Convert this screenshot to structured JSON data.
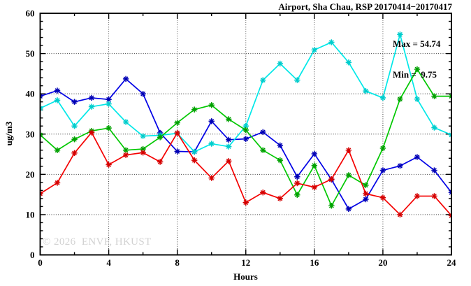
{
  "title": "Airport, Sha Chau, RSP 20170414−20170417",
  "annotation": {
    "max_line": "Max = 54.74",
    "min_line": "Min =  9.75"
  },
  "watermark": "© 2026  ENVF, HKUST",
  "axis": {
    "x_label": "Hours",
    "y_label": "ug/m3"
  },
  "chart_data": {
    "type": "line",
    "title": "Airport, Sha Chau, RSP 20170414−20170417",
    "xlabel": "Hours",
    "ylabel": "ug/m3",
    "xlim": [
      0,
      24
    ],
    "ylim": [
      0,
      60
    ],
    "xticks": [
      0,
      4,
      8,
      12,
      16,
      20,
      24
    ],
    "yticks": [
      0,
      10,
      20,
      30,
      40,
      50,
      60
    ],
    "x_minor_step": 2,
    "y_minor_step": 2,
    "grid": true,
    "legend_position": "none",
    "stats": {
      "max": 54.74,
      "min": 9.75
    },
    "x": [
      0,
      1,
      2,
      3,
      4,
      5,
      6,
      7,
      8,
      9,
      10,
      11,
      12,
      13,
      14,
      15,
      16,
      17,
      18,
      19,
      20,
      21,
      22,
      23,
      24
    ],
    "series": [
      {
        "name": "blue",
        "color": "#0000e6",
        "marker_color": "#0000b4",
        "values": [
          39.4,
          40.8,
          38.0,
          39.0,
          38.6,
          43.7,
          40.0,
          30.3,
          25.7,
          25.6,
          33.2,
          28.6,
          28.8,
          30.5,
          27.2,
          19.4,
          25.1,
          18.7,
          11.4,
          13.8,
          21.0,
          22.1,
          24.3,
          21.0,
          15.5
        ]
      },
      {
        "name": "cyan",
        "color": "#00e8e8",
        "marker_color": "#00cccc",
        "values": [
          36.4,
          38.4,
          32.0,
          36.8,
          37.5,
          33.0,
          29.5,
          29.7,
          30.2,
          25.6,
          27.6,
          26.9,
          32.0,
          43.4,
          47.5,
          43.4,
          50.9,
          52.8,
          47.8,
          40.7,
          39.0,
          54.74,
          38.7,
          31.6,
          29.8
        ]
      },
      {
        "name": "green",
        "color": "#00c800",
        "marker_color": "#00a000",
        "values": [
          29.8,
          26.0,
          28.7,
          30.8,
          31.5,
          26.0,
          26.3,
          29.2,
          32.8,
          36.1,
          37.2,
          33.7,
          31.0,
          26.0,
          23.5,
          14.9,
          22.2,
          12.2,
          19.8,
          17.3,
          26.5,
          38.7,
          46.1,
          39.4,
          39.4
        ]
      },
      {
        "name": "red",
        "color": "#f40000",
        "marker_color": "#d40000",
        "values": [
          15.2,
          17.9,
          25.3,
          30.4,
          22.4,
          24.8,
          25.4,
          23.1,
          30.3,
          23.5,
          19.1,
          23.3,
          13.0,
          15.5,
          14.0,
          17.8,
          16.8,
          18.8,
          26.0,
          15.2,
          14.2,
          10.0,
          14.6,
          14.6,
          9.75
        ]
      }
    ]
  }
}
